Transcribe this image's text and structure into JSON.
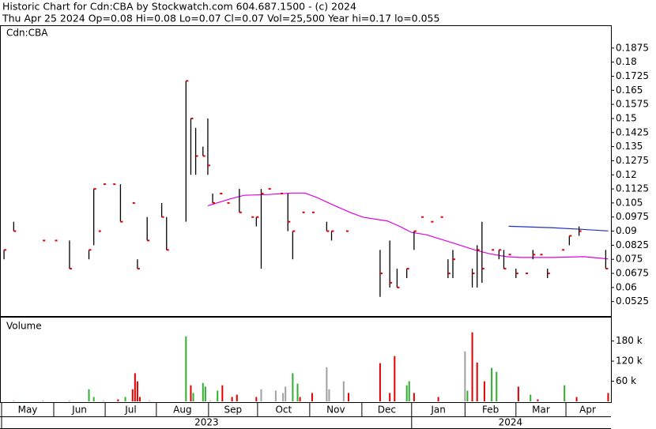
{
  "chart_data": {
    "type": "ohlc",
    "title": "Historic Chart for Cdn:CBA by Stockwatch.com 604.687.1500 - (c) 2024",
    "subtitle": "Thu Apr 25 2024  Op=0.08  Hi=0.08  Lo=0.07  Cl=0.07  Vol=25,500  Year hi=0.17  lo=0.055",
    "symbol": "Cdn:CBA",
    "x": [
      1,
      5,
      17,
      22,
      28,
      36,
      38,
      40,
      42,
      46,
      49,
      54,
      56,
      60,
      66,
      68,
      76,
      78,
      80,
      83,
      85,
      87,
      90,
      93,
      98,
      103,
      105,
      107,
      110,
      115,
      118,
      120,
      124,
      128,
      134,
      136,
      142,
      156,
      160,
      163,
      167,
      170,
      173,
      177,
      181,
      184,
      186,
      194,
      196,
      198,
      202,
      205,
      207,
      209,
      212,
      216,
      219,
      222,
      225,
      231,
      234,
      238,
      249
    ],
    "high": [
      0.08,
      0.095,
      0.085,
      0.085,
      0.085,
      0.08,
      0.1125,
      0.09,
      0.115,
      0.115,
      0.115,
      0.105,
      0.075,
      0.0975,
      0.105,
      0.0975,
      0.17,
      0.15,
      0.145,
      0.135,
      0.15,
      0.11,
      0.11,
      0.105,
      0.1125,
      0.0975,
      0.0975,
      0.1125,
      0.1125,
      0.11,
      0.11,
      0.09,
      0.1,
      0.1,
      0.095,
      0.09,
      0.09,
      0.08,
      0.085,
      0.07,
      0.07,
      0.09,
      0.0975,
      0.095,
      0.0975,
      0.075,
      0.08,
      0.07,
      0.0825,
      0.095,
      0.08,
      0.08,
      0.08,
      0.0775,
      0.07,
      0.0675,
      0.08,
      0.0775,
      0.07,
      0.08,
      0.0875,
      0.0925,
      0.08
    ],
    "low": [
      0.075,
      0.09,
      0.085,
      0.085,
      0.07,
      0.075,
      0.0825,
      0.09,
      0.115,
      0.115,
      0.095,
      0.105,
      0.07,
      0.085,
      0.0975,
      0.08,
      0.095,
      0.12,
      0.12,
      0.13,
      0.12,
      0.105,
      0.11,
      0.105,
      0.1,
      0.0975,
      0.0925,
      0.07,
      0.1125,
      0.11,
      0.09,
      0.075,
      0.1,
      0.1,
      0.09,
      0.085,
      0.09,
      0.055,
      0.06,
      0.06,
      0.065,
      0.08,
      0.0975,
      0.095,
      0.0975,
      0.065,
      0.065,
      0.06,
      0.06,
      0.0625,
      0.08,
      0.075,
      0.07,
      0.0775,
      0.065,
      0.0675,
      0.075,
      0.0775,
      0.065,
      0.08,
      0.0825,
      0.0875,
      0.07
    ],
    "close": [
      0.08,
      0.09,
      0.085,
      0.085,
      0.07,
      0.08,
      0.1125,
      0.09,
      0.115,
      0.115,
      0.095,
      0.105,
      0.07,
      0.085,
      0.0975,
      0.08,
      0.17,
      0.15,
      0.13,
      0.13,
      0.125,
      0.105,
      0.11,
      0.105,
      0.1,
      0.0975,
      0.0975,
      0.11,
      0.1125,
      0.11,
      0.095,
      0.09,
      0.1,
      0.1,
      0.09,
      0.09,
      0.09,
      0.0675,
      0.0625,
      0.06,
      0.07,
      0.09,
      0.0975,
      0.095,
      0.0975,
      0.0675,
      0.075,
      0.0675,
      0.08,
      0.07,
      0.08,
      0.08,
      0.07,
      0.0775,
      0.0675,
      0.0675,
      0.0775,
      0.0775,
      0.0675,
      0.08,
      0.0875,
      0.09,
      0.07
    ],
    "bar_color": "#000000",
    "close_color": "#e00000",
    "averages": [
      {
        "color": "#e000e0",
        "x": [
          85,
          94,
          100,
          110,
          120,
          125,
          130,
          136,
          144,
          149,
          159,
          164,
          169,
          175,
          182,
          188,
          195,
          201,
          208,
          214,
          227,
          240,
          250
        ],
        "values": [
          0.1035,
          0.1071,
          0.1091,
          0.1095,
          0.1103,
          0.1103,
          0.1079,
          0.1043,
          0.0998,
          0.0974,
          0.0954,
          0.0926,
          0.0893,
          0.0881,
          0.0853,
          0.0829,
          0.08,
          0.078,
          0.0764,
          0.076,
          0.076,
          0.0764,
          0.0752
        ]
      },
      {
        "color": "#2030c0",
        "x": [
          209,
          227,
          240,
          250
        ],
        "values": [
          0.0926,
          0.0918,
          0.0909,
          0.0901
        ]
      }
    ],
    "xlim": [
      0,
      250.5
    ],
    "ylim": [
      0.0448,
      0.1992
    ],
    "yticks": [
      0.0525,
      0.06,
      0.0675,
      0.075,
      0.0825,
      0.09,
      0.0975,
      0.105,
      0.1125,
      0.12,
      0.1275,
      0.135,
      0.1425,
      0.15,
      0.1575,
      0.165,
      0.1725,
      0.18,
      0.1875
    ],
    "xticks": [
      {
        "value": 0,
        "label": "May"
      },
      {
        "value": 21.5,
        "label": "Jun"
      },
      {
        "value": 42.7,
        "label": "Jul"
      },
      {
        "value": 63.8,
        "label": "Aug"
      },
      {
        "value": 85.3,
        "label": "Sep"
      },
      {
        "value": 105.5,
        "label": "Oct"
      },
      {
        "value": 127,
        "label": "Nov"
      },
      {
        "value": 148.5,
        "label": "Dec"
      },
      {
        "value": 169,
        "label": "Jan"
      },
      {
        "value": 191,
        "label": "Feb"
      },
      {
        "value": 212,
        "label": "Mar"
      },
      {
        "value": 232.6,
        "label": "Apr"
      }
    ],
    "years": [
      {
        "value": 0,
        "label": "2023"
      },
      {
        "value": 169,
        "label": "2024"
      }
    ],
    "volume": {
      "title": "Volume",
      "x": [
        5,
        17,
        28,
        36,
        38,
        42,
        48,
        51,
        54,
        55,
        56,
        57,
        61,
        76,
        78,
        79,
        83,
        84,
        86,
        89,
        91,
        95,
        97,
        105,
        107,
        113,
        116,
        117,
        120,
        122,
        123,
        128,
        134,
        135,
        141,
        143,
        156,
        160,
        162,
        167,
        168,
        170,
        180,
        191,
        192,
        194,
        196,
        199,
        202,
        204,
        213,
        218,
        221,
        232,
        237,
        250
      ],
      "values": [
        1000,
        1000,
        1000,
        36000,
        13000,
        1000,
        6000,
        13000,
        36000,
        84000,
        60000,
        13000,
        1000,
        194000,
        48000,
        25000,
        55000,
        44000,
        1000,
        32000,
        48000,
        13000,
        20000,
        13000,
        36000,
        32000,
        25000,
        44000,
        84000,
        53000,
        13000,
        25000,
        102000,
        36000,
        60000,
        25000,
        114000,
        25000,
        135000,
        48000,
        60000,
        25000,
        13000,
        149000,
        32000,
        206000,
        116000,
        60000,
        100000,
        88000,
        44000,
        20000,
        6000,
        48000,
        13000,
        25000
      ],
      "colors": [
        "#e00000",
        "#e00000",
        "#e00000",
        "#30b030",
        "#30b030",
        "#e00000",
        "#e00000",
        "#30b030",
        "#e00000",
        "#e00000",
        "#e00000",
        "#e00000",
        "#e00000",
        "#30b030",
        "#e00000",
        "#30b030",
        "#30b030",
        "#30b030",
        "#e00000",
        "#30b030",
        "#e00000",
        "#e00000",
        "#e00000",
        "#e00000",
        "#a0a0a0",
        "#a0a0a0",
        "#a0a0a0",
        "#a0a0a0",
        "#30b030",
        "#30b030",
        "#e00000",
        "#e00000",
        "#a0a0a0",
        "#a0a0a0",
        "#a0a0a0",
        "#e00000",
        "#e00000",
        "#e00000",
        "#e00000",
        "#30b030",
        "#30b030",
        "#e00000",
        "#e00000",
        "#a0a0a0",
        "#30b030",
        "#e00000",
        "#e00000",
        "#e00000",
        "#30b030",
        "#30b030",
        "#e00000",
        "#30b030",
        "#e00000",
        "#30b030",
        "#e00000",
        "#e00000"
      ],
      "ylim": [
        0,
        250000
      ],
      "yticks": [
        {
          "value": 60000,
          "label": "60 k"
        },
        {
          "value": 120000,
          "label": "120 k"
        },
        {
          "value": 180000,
          "label": "180 k"
        }
      ]
    }
  }
}
